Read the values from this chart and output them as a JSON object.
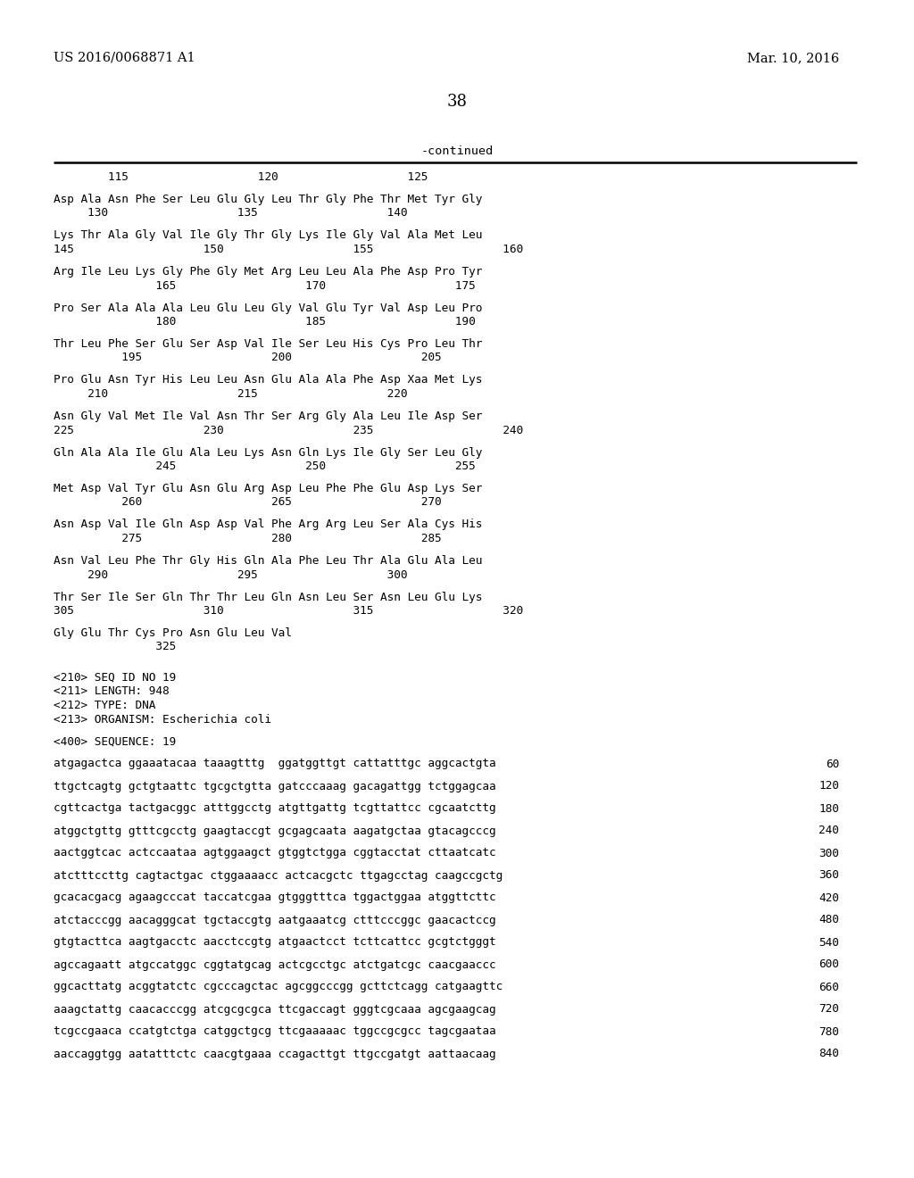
{
  "header_left": "US 2016/0068871 A1",
  "header_right": "Mar. 10, 2016",
  "page_number": "38",
  "continued_label": "-continued",
  "bg": "#ffffff",
  "fg": "#000000",
  "lines": [
    [
      "ruler",
      ""
    ],
    [
      "num",
      "        115                   120                   125"
    ],
    [
      "blank",
      ""
    ],
    [
      "seq",
      "Asp Ala Asn Phe Ser Leu Glu Gly Leu Thr Gly Phe Thr Met Tyr Gly"
    ],
    [
      "num",
      "     130                   135                   140"
    ],
    [
      "blank",
      ""
    ],
    [
      "seq",
      "Lys Thr Ala Gly Val Ile Gly Thr Gly Lys Ile Gly Val Ala Met Leu"
    ],
    [
      "num",
      "145                   150                   155                   160"
    ],
    [
      "blank",
      ""
    ],
    [
      "seq",
      "Arg Ile Leu Lys Gly Phe Gly Met Arg Leu Leu Ala Phe Asp Pro Tyr"
    ],
    [
      "num",
      "               165                   170                   175"
    ],
    [
      "blank",
      ""
    ],
    [
      "seq",
      "Pro Ser Ala Ala Ala Leu Glu Leu Gly Val Glu Tyr Val Asp Leu Pro"
    ],
    [
      "num",
      "               180                   185                   190"
    ],
    [
      "blank",
      ""
    ],
    [
      "seq",
      "Thr Leu Phe Ser Glu Ser Asp Val Ile Ser Leu His Cys Pro Leu Thr"
    ],
    [
      "num",
      "          195                   200                   205"
    ],
    [
      "blank",
      ""
    ],
    [
      "seq",
      "Pro Glu Asn Tyr His Leu Leu Asn Glu Ala Ala Phe Asp Xaa Met Lys"
    ],
    [
      "num",
      "     210                   215                   220"
    ],
    [
      "blank",
      ""
    ],
    [
      "seq",
      "Asn Gly Val Met Ile Val Asn Thr Ser Arg Gly Ala Leu Ile Asp Ser"
    ],
    [
      "num",
      "225                   230                   235                   240"
    ],
    [
      "blank",
      ""
    ],
    [
      "seq",
      "Gln Ala Ala Ile Glu Ala Leu Lys Asn Gln Lys Ile Gly Ser Leu Gly"
    ],
    [
      "num",
      "               245                   250                   255"
    ],
    [
      "blank",
      ""
    ],
    [
      "seq",
      "Met Asp Val Tyr Glu Asn Glu Arg Asp Leu Phe Phe Glu Asp Lys Ser"
    ],
    [
      "num",
      "          260                   265                   270"
    ],
    [
      "blank",
      ""
    ],
    [
      "seq",
      "Asn Asp Val Ile Gln Asp Asp Val Phe Arg Arg Leu Ser Ala Cys His"
    ],
    [
      "num",
      "          275                   280                   285"
    ],
    [
      "blank",
      ""
    ],
    [
      "seq",
      "Asn Val Leu Phe Thr Gly His Gln Ala Phe Leu Thr Ala Glu Ala Leu"
    ],
    [
      "num",
      "     290                   295                   300"
    ],
    [
      "blank",
      ""
    ],
    [
      "seq",
      "Thr Ser Ile Ser Gln Thr Thr Leu Gln Asn Leu Ser Asn Leu Glu Lys"
    ],
    [
      "num",
      "305                   310                   315                   320"
    ],
    [
      "blank",
      ""
    ],
    [
      "seq",
      "Gly Glu Thr Cys Pro Asn Glu Leu Val"
    ],
    [
      "num",
      "               325"
    ],
    [
      "blank",
      ""
    ],
    [
      "blank",
      ""
    ],
    [
      "meta",
      "<210> SEQ ID NO 19"
    ],
    [
      "meta",
      "<211> LENGTH: 948"
    ],
    [
      "meta",
      "<212> TYPE: DNA"
    ],
    [
      "meta",
      "<213> ORGANISM: Escherichia coli"
    ],
    [
      "blank",
      ""
    ],
    [
      "meta",
      "<400> SEQUENCE: 19"
    ],
    [
      "blank",
      ""
    ],
    [
      "dna",
      "atgagactca ggaaatacaa taaagtttg  ggatggttgt cattatttgc aggcactgta",
      "60"
    ],
    [
      "blank",
      ""
    ],
    [
      "dna",
      "ttgctcagtg gctgtaattc tgcgctgtta gatcccaaag gacagattgg tctggagcaa",
      "120"
    ],
    [
      "blank",
      ""
    ],
    [
      "dna",
      "cgttcactga tactgacggc atttggcctg atgttgattg tcgttattcc cgcaatcttg",
      "180"
    ],
    [
      "blank",
      ""
    ],
    [
      "dna",
      "atggctgttg gtttcgcctg gaagtaccgt gcgagcaata aagatgctaa gtacagcccg",
      "240"
    ],
    [
      "blank",
      ""
    ],
    [
      "dna",
      "aactggtcac actccaataa agtggaagct gtggtctgga cggtacctat cttaatcatc",
      "300"
    ],
    [
      "blank",
      ""
    ],
    [
      "dna",
      "atctttccttg cagtactgac ctggaaaacc actcacgctc ttgagcctag caagccgctg",
      "360"
    ],
    [
      "blank",
      ""
    ],
    [
      "dna",
      "gcacacgacg agaagcccat taccatcgaa gtgggtttca tggactggaa atggttcttc",
      "420"
    ],
    [
      "blank",
      ""
    ],
    [
      "dna",
      "atctacccgg aacagggcat tgctaccgtg aatgaaatcg ctttcccggc gaacactccg",
      "480"
    ],
    [
      "blank",
      ""
    ],
    [
      "dna",
      "gtgtacttca aagtgacctc aacctccgtg atgaactcct tcttcattcc gcgtctgggt",
      "540"
    ],
    [
      "blank",
      ""
    ],
    [
      "dna",
      "agccagaatt atgccatggc cggtatgcag actcgcctgc atctgatcgc caacgaaccc",
      "600"
    ],
    [
      "blank",
      ""
    ],
    [
      "dna",
      "ggcacttatg acggtatctc cgcccagctac agcggcccgg gcttctcagg catgaagttc",
      "660"
    ],
    [
      "blank",
      ""
    ],
    [
      "dna",
      "aaagctattg caacacccgg atcgcgcgca ttcgaccagt gggtcgcaaa agcgaagcag",
      "720"
    ],
    [
      "blank",
      ""
    ],
    [
      "dna",
      "tcgccgaaca ccatgtctga catggctgcg ttcgaaaaac tggccgcgcc tagcgaataa",
      "780"
    ],
    [
      "blank",
      ""
    ],
    [
      "dna",
      "aaccaggtgg aatatttctc caacgtgaaa ccagacttgt ttgccgatgt aattaacaag",
      "840"
    ]
  ]
}
